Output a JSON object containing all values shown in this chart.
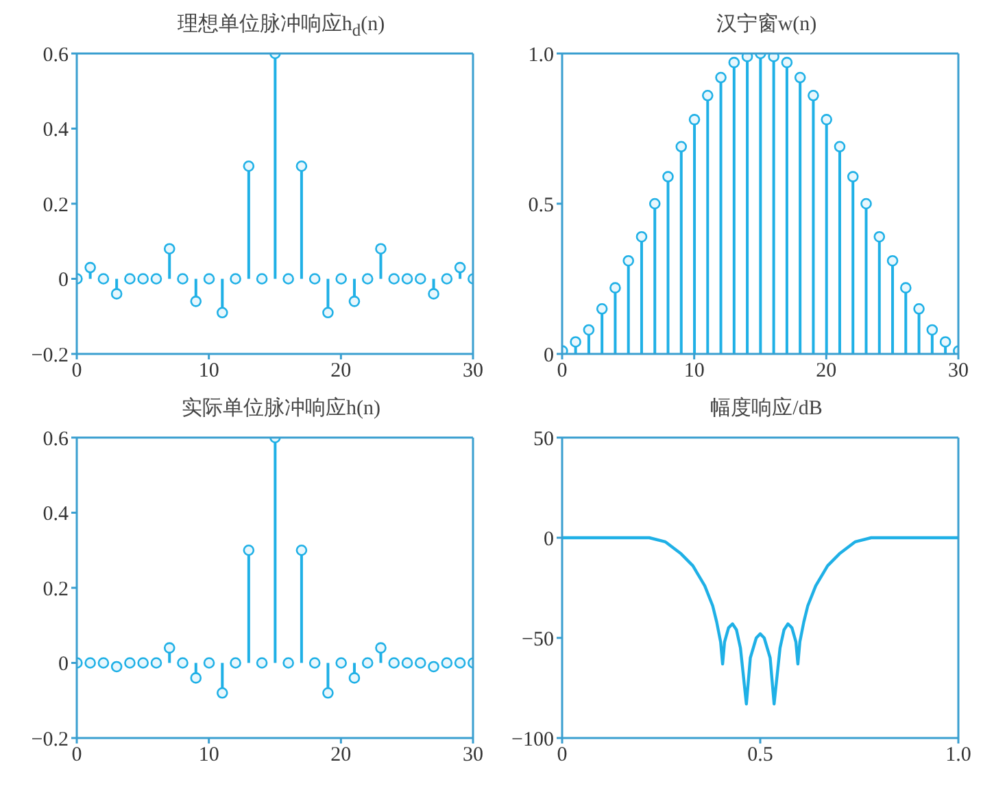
{
  "chart_data": [
    {
      "type": "lollipop",
      "title": "理想单位脉冲响应h$_{d}$(n)",
      "x": [
        0,
        1,
        2,
        3,
        4,
        5,
        6,
        7,
        8,
        9,
        10,
        11,
        12,
        13,
        14,
        15,
        16,
        17,
        18,
        19,
        20,
        21,
        22,
        23,
        24,
        25,
        26,
        27,
        28,
        29,
        30
      ],
      "series": [
        {
          "color": "#1fb0e6",
          "values": [
            0,
            0.03,
            0,
            -0.04,
            0,
            0,
            0,
            0.08,
            0,
            -0.06,
            0,
            -0.09,
            0,
            0.3,
            0,
            0.6,
            0,
            0.3,
            0,
            -0.09,
            0,
            -0.06,
            0,
            0.08,
            0,
            0,
            0,
            -0.04,
            0,
            0.03,
            0
          ]
        }
      ],
      "xlim": [
        0,
        30
      ],
      "xticks": [
        0,
        10,
        20,
        30
      ],
      "ylim": [
        -0.2,
        0.6
      ],
      "yticks": [
        {
          "value": -0.2,
          "label": "−0.2"
        },
        0,
        0.2,
        0.4,
        0.6
      ],
      "marker": "circle",
      "grid": false,
      "legend": false
    },
    {
      "type": "lollipop",
      "title": "汉宁窗w(n)",
      "x": [
        0,
        1,
        2,
        3,
        4,
        5,
        6,
        7,
        8,
        9,
        10,
        11,
        12,
        13,
        14,
        15,
        16,
        17,
        18,
        19,
        20,
        21,
        22,
        23,
        24,
        25,
        26,
        27,
        28,
        29,
        30
      ],
      "series": [
        {
          "color": "#1fb0e6",
          "values": [
            0.01,
            0.04,
            0.08,
            0.15,
            0.22,
            0.31,
            0.39,
            0.5,
            0.59,
            0.69,
            0.78,
            0.86,
            0.92,
            0.97,
            0.99,
            1,
            0.99,
            0.97,
            0.92,
            0.86,
            0.78,
            0.69,
            0.59,
            0.5,
            0.39,
            0.31,
            0.22,
            0.15,
            0.08,
            0.04,
            0.01
          ]
        }
      ],
      "xlim": [
        0,
        30
      ],
      "xticks": [
        0,
        10,
        20,
        30
      ],
      "ylim": [
        0,
        1
      ],
      "yticks": [
        0,
        0.5,
        {
          "value": 1,
          "label": "1.0"
        }
      ],
      "marker": "circle",
      "grid": false,
      "legend": false
    },
    {
      "type": "lollipop",
      "title": "实际单位脉冲响应h(n)",
      "x": [
        0,
        1,
        2,
        3,
        4,
        5,
        6,
        7,
        8,
        9,
        10,
        11,
        12,
        13,
        14,
        15,
        16,
        17,
        18,
        19,
        20,
        21,
        22,
        23,
        24,
        25,
        26,
        27,
        28,
        29,
        30
      ],
      "series": [
        {
          "color": "#1fb0e6",
          "values": [
            0,
            0,
            0,
            -0.01,
            0,
            0,
            0,
            0.04,
            0,
            -0.04,
            0,
            -0.08,
            0,
            0.3,
            0,
            0.6,
            0,
            0.3,
            0,
            -0.08,
            0,
            -0.04,
            0,
            0.04,
            0,
            0,
            0,
            -0.01,
            0,
            0,
            0
          ]
        }
      ],
      "xlim": [
        0,
        30
      ],
      "xticks": [
        0,
        10,
        20,
        30
      ],
      "ylim": [
        -0.2,
        0.6
      ],
      "yticks": [
        {
          "value": -0.2,
          "label": "−0.2"
        },
        0,
        0.2,
        0.4,
        0.6
      ],
      "marker": "circle",
      "grid": false,
      "legend": false
    },
    {
      "type": "line",
      "title": "幅度响应/dB",
      "x": [
        0,
        0.2,
        0.22,
        0.26,
        0.3,
        0.33,
        0.36,
        0.38,
        0.39,
        0.4,
        0.405,
        0.41,
        0.42,
        0.43,
        0.44,
        0.45,
        0.465,
        0.475,
        0.49,
        0.5,
        0.51,
        0.525,
        0.535,
        0.55,
        0.56,
        0.57,
        0.58,
        0.59,
        0.595,
        0.6,
        0.61,
        0.62,
        0.64,
        0.67,
        0.7,
        0.74,
        0.78,
        1
      ],
      "series": [
        {
          "color": "#1fb0e6",
          "values": [
            0,
            0,
            0,
            -2,
            -8,
            -14,
            -24,
            -34,
            -42,
            -52,
            -63,
            -52,
            -45,
            -43,
            -46,
            -55,
            -83,
            -60,
            -50,
            -48,
            -50,
            -60,
            -83,
            -55,
            -46,
            -43,
            -45,
            -52,
            -63,
            -52,
            -42,
            -34,
            -24,
            -14,
            -8,
            -2,
            0,
            0
          ]
        }
      ],
      "xlim": [
        0,
        1
      ],
      "xticks": [
        0,
        0.5,
        {
          "value": 1,
          "label": "1.0"
        }
      ],
      "ylim": [
        -100,
        50
      ],
      "yticks": [
        {
          "value": -100,
          "label": "−100"
        },
        {
          "value": -50,
          "label": "−50"
        },
        0,
        50
      ],
      "marker": "none",
      "line_style": "solid",
      "grid": false,
      "legend": false
    }
  ]
}
